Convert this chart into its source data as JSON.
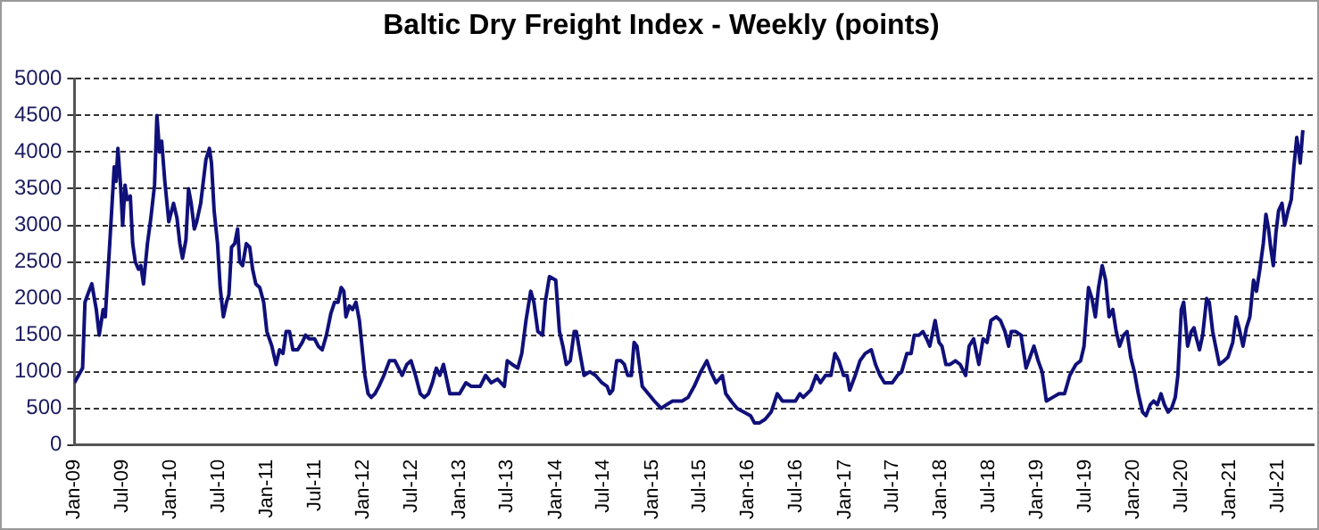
{
  "chart_data": {
    "type": "line",
    "title": "Baltic Dry Freight Index - Weekly (points)",
    "x": [
      "2009-01-01",
      "2009-02-01",
      "2009-02-10",
      "2009-02-25",
      "2009-03-08",
      "2009-03-25",
      "2009-04-05",
      "2009-04-20",
      "2009-04-28",
      "2009-05-15",
      "2009-06-01",
      "2009-06-08",
      "2009-06-15",
      "2009-06-25",
      "2009-07-03",
      "2009-07-12",
      "2009-07-20",
      "2009-08-01",
      "2009-08-10",
      "2009-08-20",
      "2009-09-01",
      "2009-09-10",
      "2009-09-20",
      "2009-10-05",
      "2009-10-18",
      "2009-11-01",
      "2009-11-10",
      "2009-11-20",
      "2009-11-28",
      "2009-12-10",
      "2009-12-25",
      "2010-01-12",
      "2010-01-25",
      "2010-02-05",
      "2010-02-15",
      "2010-02-28",
      "2010-03-10",
      "2010-03-20",
      "2010-04-01",
      "2010-04-10",
      "2010-04-25",
      "2010-05-05",
      "2010-05-15",
      "2010-05-28",
      "2010-06-05",
      "2010-06-15",
      "2010-06-28",
      "2010-07-08",
      "2010-07-20",
      "2010-08-01",
      "2010-08-10",
      "2010-08-20",
      "2010-09-01",
      "2010-09-12",
      "2010-09-20",
      "2010-10-01",
      "2010-10-15",
      "2010-10-28",
      "2010-11-08",
      "2010-11-20",
      "2010-12-05",
      "2010-12-20",
      "2011-01-01",
      "2011-01-20",
      "2011-02-05",
      "2011-02-18",
      "2011-03-03",
      "2011-03-15",
      "2011-03-28",
      "2011-04-10",
      "2011-04-28",
      "2011-05-15",
      "2011-05-28",
      "2011-06-10",
      "2011-07-01",
      "2011-07-15",
      "2011-07-30",
      "2011-08-15",
      "2011-09-01",
      "2011-09-15",
      "2011-09-28",
      "2011-10-10",
      "2011-10-20",
      "2011-10-28",
      "2011-11-10",
      "2011-11-22",
      "2011-12-05",
      "2011-12-18",
      "2012-01-08",
      "2012-01-20",
      "2012-02-01",
      "2012-02-15",
      "2012-03-01",
      "2012-03-20",
      "2012-04-10",
      "2012-05-01",
      "2012-05-15",
      "2012-05-28",
      "2012-06-15",
      "2012-07-01",
      "2012-07-18",
      "2012-08-05",
      "2012-08-20",
      "2012-09-05",
      "2012-09-20",
      "2012-10-05",
      "2012-10-18",
      "2012-11-01",
      "2012-11-25",
      "2013-01-01",
      "2013-01-25",
      "2013-02-15",
      "2013-03-20",
      "2013-04-10",
      "2013-05-01",
      "2013-05-25",
      "2013-06-20",
      "2013-07-01",
      "2013-07-20",
      "2013-08-10",
      "2013-08-25",
      "2013-09-10",
      "2013-09-28",
      "2013-10-10",
      "2013-10-25",
      "2013-11-12",
      "2013-11-22",
      "2013-12-08",
      "2014-01-01",
      "2014-01-15",
      "2014-01-28",
      "2014-02-10",
      "2014-02-25",
      "2014-03-12",
      "2014-03-20",
      "2014-04-03",
      "2014-04-18",
      "2014-05-10",
      "2014-06-01",
      "2014-06-25",
      "2014-07-15",
      "2014-07-25",
      "2014-08-05",
      "2014-08-20",
      "2014-09-05",
      "2014-09-18",
      "2014-10-01",
      "2014-10-15",
      "2014-10-25",
      "2014-11-05",
      "2014-11-25",
      "2014-12-18",
      "2015-01-10",
      "2015-02-05",
      "2015-02-25",
      "2015-03-20",
      "2015-04-25",
      "2015-05-18",
      "2015-06-10",
      "2015-07-05",
      "2015-07-28",
      "2015-08-12",
      "2015-09-01",
      "2015-09-25",
      "2015-10-08",
      "2015-10-28",
      "2015-11-20",
      "2015-12-15",
      "2016-01-10",
      "2016-01-25",
      "2016-02-12",
      "2016-03-05",
      "2016-03-28",
      "2016-04-20",
      "2016-05-10",
      "2016-06-05",
      "2016-06-28",
      "2016-07-15",
      "2016-07-28",
      "2016-08-25",
      "2016-09-15",
      "2016-10-01",
      "2016-10-20",
      "2016-11-10",
      "2016-11-25",
      "2016-12-10",
      "2016-12-28",
      "2017-01-10",
      "2017-01-20",
      "2017-02-10",
      "2017-02-28",
      "2017-03-20",
      "2017-04-12",
      "2017-04-28",
      "2017-05-15",
      "2017-06-01",
      "2017-07-01",
      "2017-07-20",
      "2017-08-05",
      "2017-08-25",
      "2017-09-10",
      "2017-09-22",
      "2017-10-10",
      "2017-10-25",
      "2017-11-08",
      "2017-11-20",
      "2017-12-10",
      "2017-12-25",
      "2018-01-05",
      "2018-01-20",
      "2018-02-05",
      "2018-02-25",
      "2018-03-15",
      "2018-04-05",
      "2018-04-18",
      "2018-05-05",
      "2018-05-25",
      "2018-06-10",
      "2018-06-25",
      "2018-07-10",
      "2018-07-30",
      "2018-08-15",
      "2018-09-01",
      "2018-09-15",
      "2018-09-25",
      "2018-10-12",
      "2018-11-01",
      "2018-11-20",
      "2018-12-05",
      "2018-12-20",
      "2019-01-05",
      "2019-01-20",
      "2019-02-05",
      "2019-03-01",
      "2019-03-25",
      "2019-04-15",
      "2019-05-05",
      "2019-05-28",
      "2019-06-15",
      "2019-06-28",
      "2019-07-15",
      "2019-07-28",
      "2019-08-10",
      "2019-08-22",
      "2019-09-05",
      "2019-09-18",
      "2019-10-01",
      "2019-10-15",
      "2019-10-28",
      "2019-11-10",
      "2019-11-25",
      "2019-12-08",
      "2019-12-22",
      "2020-01-05",
      "2020-01-20",
      "2020-02-05",
      "2020-02-18",
      "2020-03-05",
      "2020-03-18",
      "2020-04-01",
      "2020-04-15",
      "2020-04-28",
      "2020-05-12",
      "2020-05-25",
      "2020-06-08",
      "2020-06-18",
      "2020-07-01",
      "2020-07-10",
      "2020-07-25",
      "2020-08-08",
      "2020-08-18",
      "2020-08-28",
      "2020-09-08",
      "2020-09-20",
      "2020-10-05",
      "2020-10-15",
      "2020-10-28",
      "2020-11-08",
      "2020-11-22",
      "2020-12-10",
      "2020-12-25",
      "2021-01-12",
      "2021-01-25",
      "2021-02-05",
      "2021-02-20",
      "2021-03-05",
      "2021-03-18",
      "2021-04-01",
      "2021-04-12",
      "2021-04-25",
      "2021-05-08",
      "2021-05-18",
      "2021-05-28",
      "2021-06-05",
      "2021-06-15",
      "2021-06-25",
      "2021-07-05",
      "2021-07-18",
      "2021-07-28",
      "2021-08-10",
      "2021-08-22",
      "2021-09-01",
      "2021-09-12",
      "2021-09-20",
      "2021-09-25",
      "2021-10-05"
    ],
    "values": [
      850,
      1050,
      1950,
      2100,
      2200,
      1850,
      1500,
      1850,
      1750,
      2750,
      3800,
      3600,
      4050,
      3550,
      3000,
      3550,
      3350,
      3400,
      2750,
      2500,
      2400,
      2450,
      2200,
      2750,
      3100,
      3550,
      4500,
      4000,
      4150,
      3600,
      3050,
      3300,
      3100,
      2750,
      2550,
      2800,
      3500,
      3300,
      2950,
      3050,
      3300,
      3600,
      3900,
      4050,
      3850,
      3200,
      2750,
      2150,
      1750,
      1950,
      2050,
      2700,
      2750,
      2950,
      2500,
      2450,
      2750,
      2700,
      2400,
      2200,
      2150,
      1950,
      1550,
      1350,
      1100,
      1300,
      1250,
      1550,
      1550,
      1300,
      1300,
      1400,
      1500,
      1450,
      1450,
      1350,
      1300,
      1500,
      1800,
      1950,
      1950,
      2150,
      2100,
      1750,
      1900,
      1850,
      1950,
      1700,
      950,
      700,
      650,
      700,
      800,
      950,
      1150,
      1150,
      1050,
      950,
      1100,
      1150,
      950,
      700,
      650,
      700,
      850,
      1050,
      950,
      1100,
      700,
      700,
      850,
      800,
      800,
      950,
      850,
      900,
      800,
      1150,
      1100,
      1050,
      1250,
      1700,
      2100,
      1950,
      1550,
      1500,
      1950,
      2300,
      2250,
      1550,
      1350,
      1100,
      1150,
      1550,
      1550,
      1250,
      950,
      1000,
      950,
      850,
      800,
      700,
      750,
      1150,
      1150,
      1100,
      950,
      950,
      1400,
      1350,
      800,
      700,
      600,
      500,
      550,
      600,
      600,
      650,
      800,
      1000,
      1150,
      1000,
      850,
      950,
      700,
      600,
      500,
      450,
      400,
      300,
      300,
      350,
      450,
      700,
      600,
      600,
      600,
      700,
      650,
      750,
      950,
      850,
      950,
      950,
      1250,
      1150,
      950,
      950,
      750,
      950,
      1150,
      1250,
      1300,
      1100,
      950,
      850,
      850,
      950,
      1000,
      1250,
      1250,
      1500,
      1500,
      1550,
      1450,
      1350,
      1700,
      1400,
      1350,
      1100,
      1100,
      1150,
      1100,
      950,
      1350,
      1450,
      1100,
      1450,
      1400,
      1700,
      1750,
      1700,
      1550,
      1350,
      1550,
      1550,
      1500,
      1050,
      1200,
      1350,
      1150,
      1000,
      600,
      650,
      700,
      700,
      950,
      1100,
      1150,
      1350,
      2150,
      2000,
      1750,
      2150,
      2450,
      2250,
      1750,
      1850,
      1550,
      1350,
      1500,
      1550,
      1200,
      1000,
      700,
      450,
      400,
      550,
      600,
      550,
      700,
      550,
      450,
      500,
      650,
      950,
      1850,
      1950,
      1350,
      1550,
      1600,
      1450,
      1300,
      1500,
      2000,
      1950,
      1550,
      1350,
      1100,
      1150,
      1200,
      1400,
      1750,
      1600,
      1350,
      1600,
      1750,
      2250,
      2100,
      2400,
      2750,
      3150,
      2950,
      2700,
      2450,
      2900,
      3200,
      3300,
      3000,
      3200,
      3350,
      3800,
      4200,
      4000,
      3850,
      4300
    ],
    "color": "#10107a",
    "xlim": [
      "2009-01-01",
      "2021-11-15"
    ],
    "xticks": [
      {
        "value": "2009-01",
        "label": "Jan-09"
      },
      {
        "value": "2009-07",
        "label": "Jul-09"
      },
      {
        "value": "2010-01",
        "label": "Jan-10"
      },
      {
        "value": "2010-07",
        "label": "Jul-10"
      },
      {
        "value": "2011-01",
        "label": "Jan-11"
      },
      {
        "value": "2011-07",
        "label": "Jul-11"
      },
      {
        "value": "2012-01",
        "label": "Jan-12"
      },
      {
        "value": "2012-07",
        "label": "Jul-12"
      },
      {
        "value": "2013-01",
        "label": "Jan-13"
      },
      {
        "value": "2013-07",
        "label": "Jul-13"
      },
      {
        "value": "2014-01",
        "label": "Jan-14"
      },
      {
        "value": "2014-07",
        "label": "Jul-14"
      },
      {
        "value": "2015-01",
        "label": "Jan-15"
      },
      {
        "value": "2015-07",
        "label": "Jul-15"
      },
      {
        "value": "2016-01",
        "label": "Jan-16"
      },
      {
        "value": "2016-07",
        "label": "Jul-16"
      },
      {
        "value": "2017-01",
        "label": "Jan-17"
      },
      {
        "value": "2017-07",
        "label": "Jul-17"
      },
      {
        "value": "2018-01",
        "label": "Jan-18"
      },
      {
        "value": "2018-07",
        "label": "Jul-18"
      },
      {
        "value": "2019-01",
        "label": "Jan-19"
      },
      {
        "value": "2019-07",
        "label": "Jul-19"
      },
      {
        "value": "2020-01",
        "label": "Jan-20"
      },
      {
        "value": "2020-07",
        "label": "Jul-20"
      },
      {
        "value": "2021-01",
        "label": "Jan-21"
      },
      {
        "value": "2021-07",
        "label": "Jul-21"
      }
    ],
    "ylim": [
      0,
      5000
    ],
    "yticks": [
      0,
      500,
      1000,
      1500,
      2000,
      2500,
      3000,
      3500,
      4000,
      4500,
      5000
    ],
    "grid": "y",
    "legend": false,
    "marker": "none",
    "line_style": "solid"
  }
}
